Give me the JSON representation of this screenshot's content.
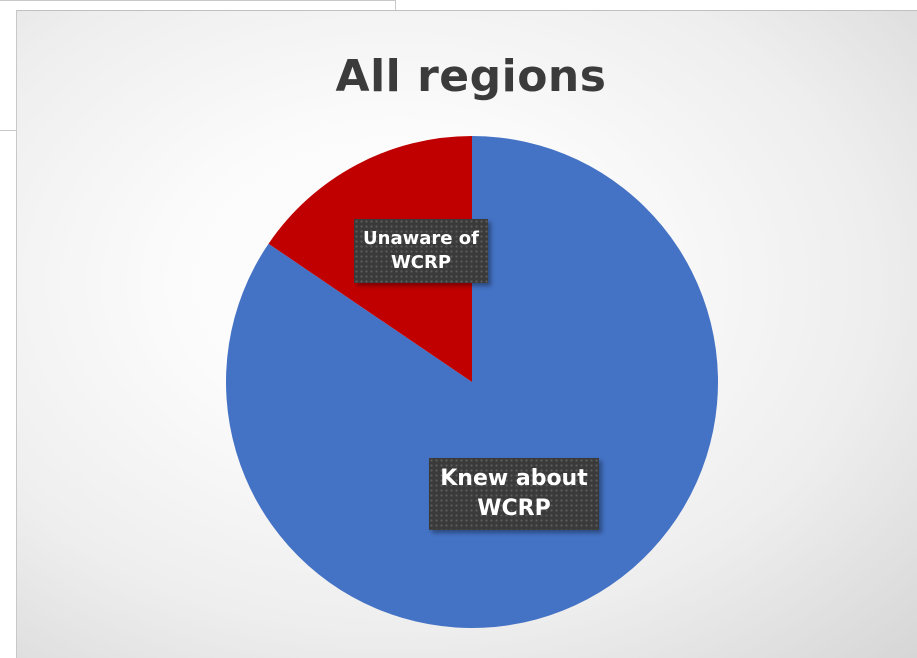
{
  "chart_data": {
    "type": "pie",
    "title": "All regions",
    "slices": [
      {
        "label_line1": "Knew about",
        "label_line2": "WCRP",
        "value": 84.5,
        "color": "#4472C4"
      },
      {
        "label_line1": "Unaware of",
        "label_line2": "WCRP",
        "value": 15.5,
        "color": "#C00000"
      }
    ],
    "start_angle_deg": 0,
    "direction": "clockwise",
    "legend": "none"
  }
}
